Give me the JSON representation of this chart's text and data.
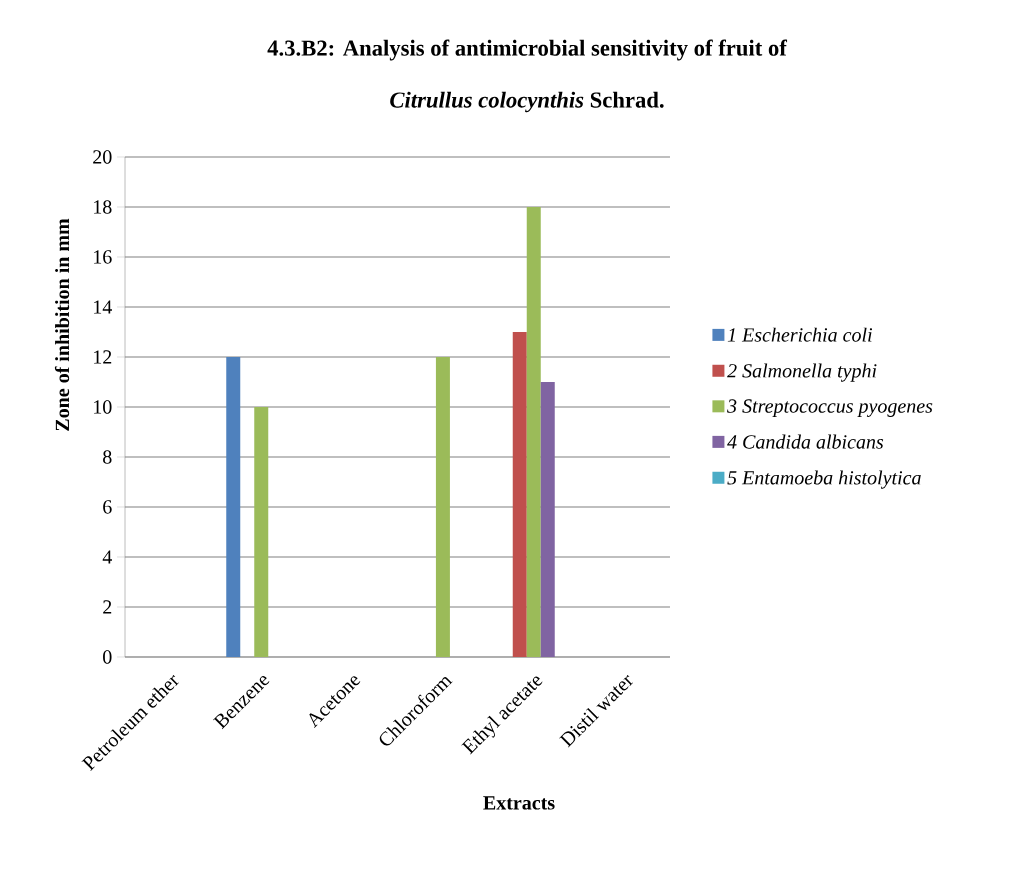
{
  "chart_data": {
    "type": "bar",
    "title": "4.3.B2: Analysis of antimicrobial sensitivity of fruit of",
    "subtitle": "*Citrullus colocynthis* Schrad.",
    "xlabel": "Extracts",
    "ylabel": "Zone of inhibition in mm",
    "categories": [
      "Petroleum ether",
      "Benzene",
      "Acetone",
      "Chloroform",
      "Ethyl acetate",
      "Distil water"
    ],
    "series": [
      {
        "name": "1 *Escherichia coli*",
        "color": "#4f81bd",
        "values": [
          0,
          12,
          0,
          0,
          0,
          0
        ]
      },
      {
        "name": "2 *Salmonella typhi*",
        "color": "#c0504d",
        "values": [
          0,
          0,
          0,
          0,
          13,
          0
        ]
      },
      {
        "name": "3 *Streptococcus pyogenes*",
        "color": "#9bbb59",
        "values": [
          0,
          10,
          0,
          12,
          18,
          0
        ]
      },
      {
        "name": "4 *Candida albicans*",
        "color": "#8064a2",
        "values": [
          0,
          0,
          0,
          0,
          11,
          0
        ]
      },
      {
        "name": "5 *Entamoeba histolytica*",
        "color": "#4bacc6",
        "values": [
          0,
          0,
          0,
          0,
          0,
          0
        ]
      }
    ],
    "ylim": [
      0,
      20
    ],
    "yticks": [
      0,
      2,
      4,
      6,
      8,
      10,
      12,
      14,
      16,
      18,
      20
    ],
    "grid": "y",
    "legend": "right"
  }
}
